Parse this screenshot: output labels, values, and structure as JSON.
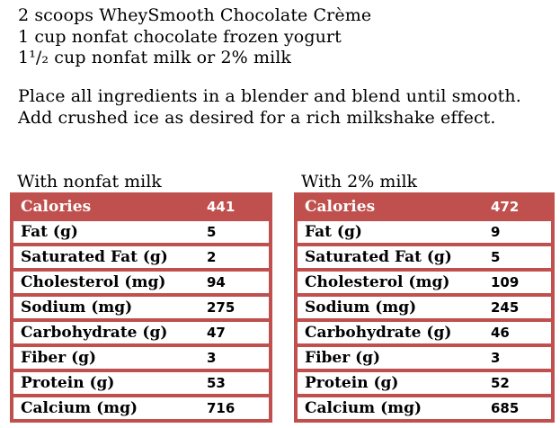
{
  "colors": {
    "accent_red": "#C0504D",
    "row_bg": "#FFFFFF",
    "header_text": "#FFFFFF",
    "body_text": "#000000"
  },
  "ingredients": {
    "lines": [
      "2 scoops WheySmooth Chocolate Crème",
      "1 cup nonfat chocolate frozen yogurt",
      "1¹/₂ cup nonfat milk or 2% milk"
    ]
  },
  "instructions": {
    "lines": [
      "Place all ingredients in a blender and blend until smooth.",
      "Add crushed ice as desired for a rich milkshake effect."
    ]
  },
  "nutrition_tables": [
    {
      "title": "With nonfat milk",
      "rows": [
        {
          "label": "Calories",
          "value": "441",
          "header": true
        },
        {
          "label": "Fat (g)",
          "value": "5"
        },
        {
          "label": "Saturated Fat (g)",
          "value": "2"
        },
        {
          "label": "Cholesterol (mg)",
          "value": "94"
        },
        {
          "label": "Sodium (mg)",
          "value": "275"
        },
        {
          "label": "Carbohydrate (g)",
          "value": "47"
        },
        {
          "label": "Fiber (g)",
          "value": "3"
        },
        {
          "label": "Protein (g)",
          "value": "53"
        },
        {
          "label": "Calcium (mg)",
          "value": "716"
        }
      ]
    },
    {
      "title": "With 2% milk",
      "rows": [
        {
          "label": "Calories",
          "value": "472",
          "header": true
        },
        {
          "label": "Fat (g)",
          "value": "9"
        },
        {
          "label": "Saturated Fat (g)",
          "value": "5"
        },
        {
          "label": "Cholesterol (mg)",
          "value": "109"
        },
        {
          "label": "Sodium (mg)",
          "value": "245"
        },
        {
          "label": "Carbohydrate (g)",
          "value": "46"
        },
        {
          "label": "Fiber (g)",
          "value": "3"
        },
        {
          "label": "Protein (g)",
          "value": "52"
        },
        {
          "label": "Calcium (mg)",
          "value": "685"
        }
      ]
    }
  ]
}
